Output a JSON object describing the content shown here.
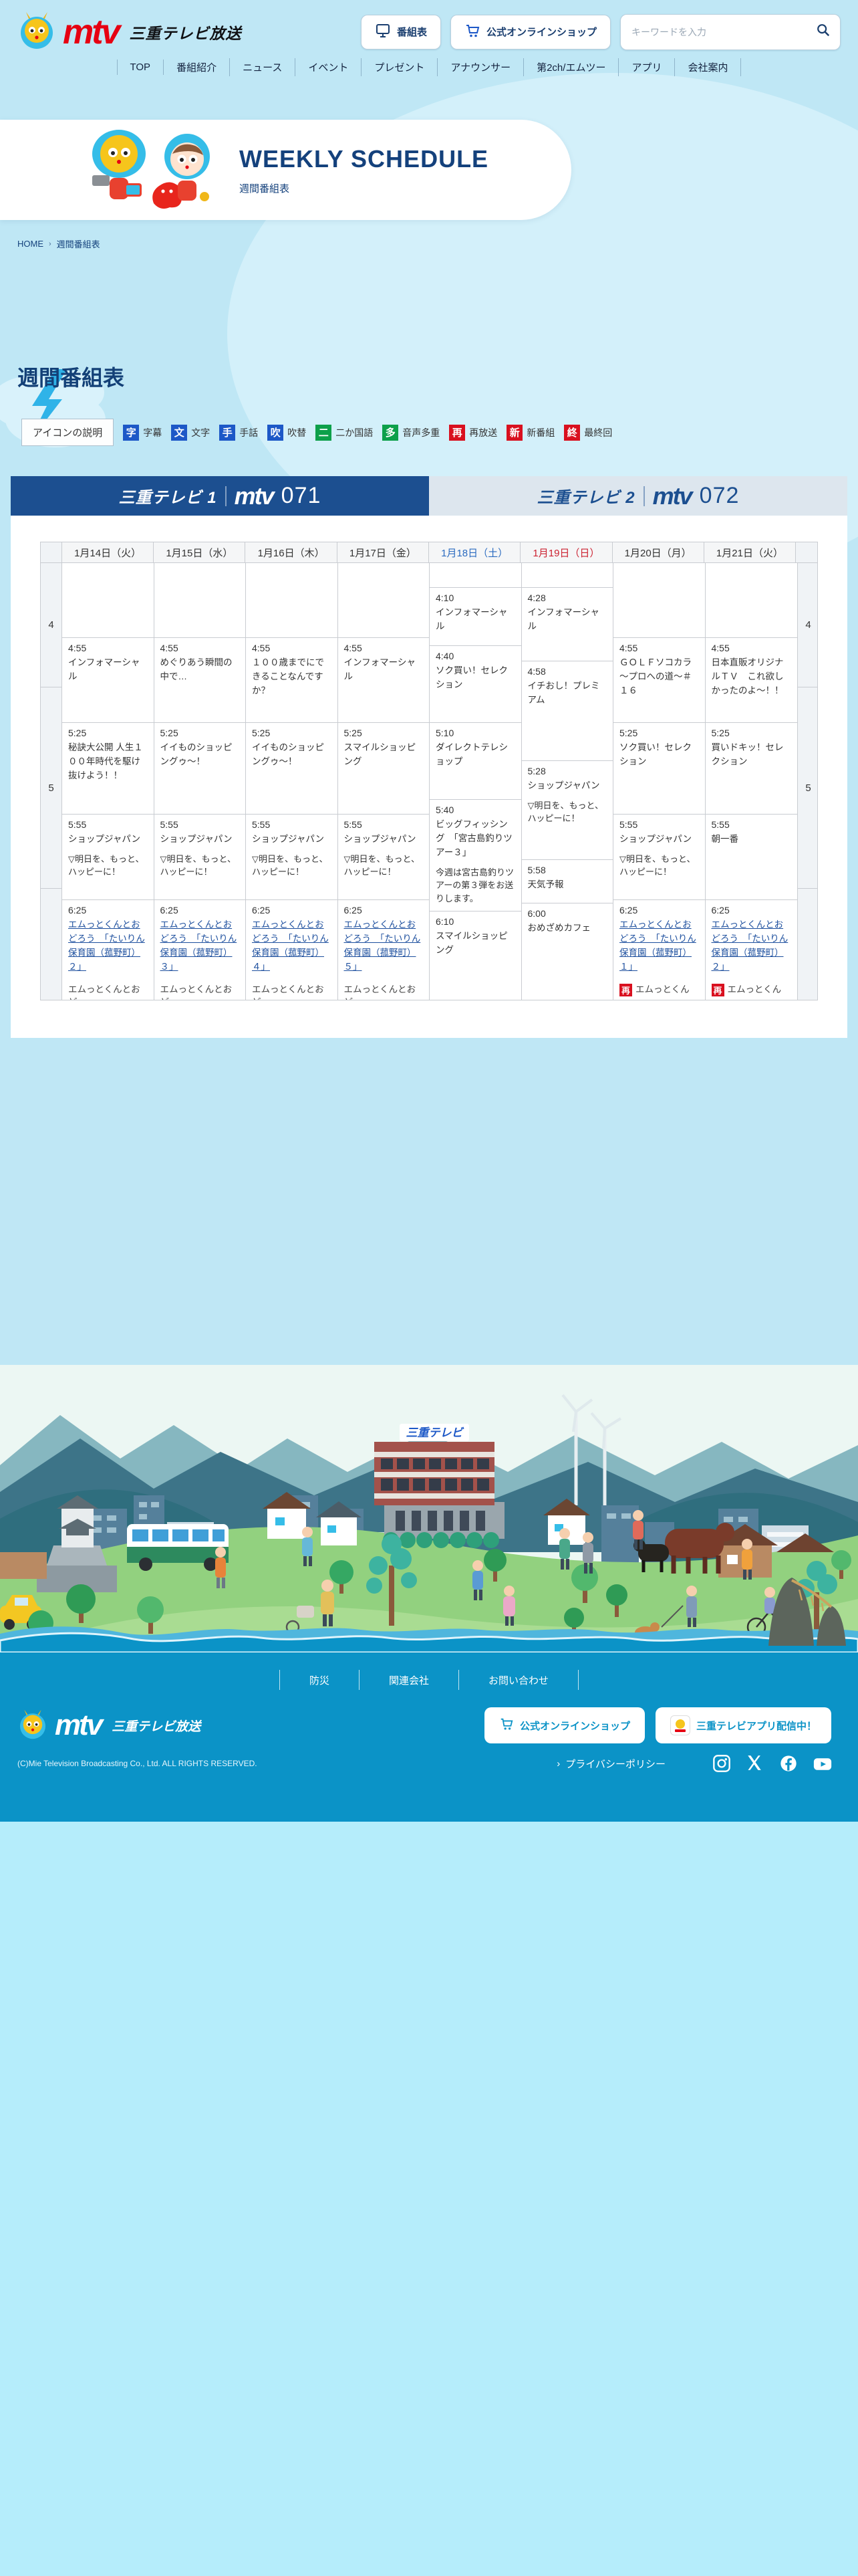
{
  "header": {
    "logo": {
      "brand": "mtv",
      "company": "三重テレビ放送"
    },
    "buttons": {
      "schedule": "番組表",
      "shop": "公式オンラインショップ"
    },
    "search": {
      "placeholder": "キーワードを入力"
    },
    "nav": [
      "TOP",
      "番組紹介",
      "ニュース",
      "イベント",
      "プレゼント",
      "アナウンサー",
      "第2ch/エムツー",
      "アプリ",
      "会社案内"
    ]
  },
  "banner": {
    "title": "WEEKLY SCHEDULE",
    "subtitle": "週間番組表"
  },
  "breadcrumb": {
    "home": "HOME",
    "current": "週間番組表"
  },
  "page": {
    "heading": "週間番組表"
  },
  "legend": {
    "label": "アイコンの説明",
    "items": [
      {
        "glyph": "字",
        "label": "字幕",
        "color": "#1d58c7"
      },
      {
        "glyph": "文",
        "label": "文字",
        "color": "#1d58c7"
      },
      {
        "glyph": "手",
        "label": "手話",
        "color": "#1d58c7"
      },
      {
        "glyph": "吹",
        "label": "吹替",
        "color": "#1d58c7"
      },
      {
        "glyph": "二",
        "label": "二か国語",
        "color": "#0da04a"
      },
      {
        "glyph": "多",
        "label": "音声多重",
        "color": "#0da04a"
      },
      {
        "glyph": "再",
        "label": "再放送",
        "color": "#d9101f"
      },
      {
        "glyph": "新",
        "label": "新番組",
        "color": "#d9101f"
      },
      {
        "glyph": "終",
        "label": "最終回",
        "color": "#d9101f"
      }
    ]
  },
  "tabs": [
    {
      "name": "三重テレビ 1",
      "brand": "mtv",
      "number": "071",
      "active": true
    },
    {
      "name": "三重テレビ 2",
      "brand": "mtv",
      "number": "072",
      "active": false
    }
  ],
  "schedule": {
    "dates": [
      {
        "label": "1月14日（火）",
        "type": "weekday"
      },
      {
        "label": "1月15日（水）",
        "type": "weekday"
      },
      {
        "label": "1月16日（木）",
        "type": "weekday"
      },
      {
        "label": "1月17日（金）",
        "type": "weekday"
      },
      {
        "label": "1月18日（土）",
        "type": "saturday"
      },
      {
        "label": "1月19日（日）",
        "type": "sunday"
      },
      {
        "label": "1月20日（月）",
        "type": "weekday"
      },
      {
        "label": "1月21日（火）",
        "type": "weekday"
      }
    ],
    "hours": [
      "4",
      "5",
      ""
    ],
    "columns": [
      {
        "programs": [
          {
            "time": "4:55",
            "title": "インフォマーシャル"
          },
          {
            "time": "5:25",
            "title": "秘訣大公開 人生１００年時代を駆け抜けよう！！"
          },
          {
            "time": "5:55",
            "title": "ショップジャパン",
            "desc": "▽明日を、もっと、ハッピーに！"
          },
          {
            "time": "6:25",
            "title": "エムっとくんとおどろう　「たいりん保育園（菰野町）２」",
            "link": true,
            "next": {
              "text": "エムっとくんとおど"
            }
          }
        ]
      },
      {
        "programs": [
          {
            "time": "4:55",
            "title": "めぐりあう瞬間の中で…"
          },
          {
            "time": "5:25",
            "title": "イイものショッピングゥ～！"
          },
          {
            "time": "5:55",
            "title": "ショップジャパン",
            "desc": "▽明日を、もっと、ハッピーに！"
          },
          {
            "time": "6:25",
            "title": "エムっとくんとおどろう　「たいりん保育園（菰野町）３」",
            "link": true,
            "next": {
              "text": "エムっとくんとおど"
            }
          }
        ]
      },
      {
        "programs": [
          {
            "time": "4:55",
            "title": "１００歳までにできることなんですか？"
          },
          {
            "time": "5:25",
            "title": "イイものショッピングゥ～！"
          },
          {
            "time": "5:55",
            "title": "ショップジャパン",
            "desc": "▽明日を、もっと、ハッピーに！"
          },
          {
            "time": "6:25",
            "title": "エムっとくんとおどろう　「たいりん保育園（菰野町）４」",
            "link": true,
            "next": {
              "text": "エムっとくんとおど"
            }
          }
        ]
      },
      {
        "programs": [
          {
            "time": "4:55",
            "title": "インフォマーシャル"
          },
          {
            "time": "5:25",
            "title": "スマイルショッピング"
          },
          {
            "time": "5:55",
            "title": "ショップジャパン",
            "desc": "▽明日を、もっと、ハッピーに！"
          },
          {
            "time": "6:25",
            "title": "エムっとくんとおどろう　「たいりん保育園（菰野町）５」",
            "link": true,
            "next": {
              "text": "エムっとくんとおど"
            }
          }
        ]
      },
      {
        "programs": [
          {
            "time": "4:10",
            "title": "インフォマーシャル"
          },
          {
            "time": "4:40",
            "title": "ソク買い！セレクション"
          },
          {
            "time": "5:10",
            "title": "ダイレクトテレショップ"
          },
          {
            "time": "5:40",
            "title": "ビッグフィッシング　「宮古島釣りツアー３」",
            "desc": "今週は宮古島釣りツアーの第３弾をお送りします。"
          },
          {
            "time": "6:10",
            "title": "スマイルショッピング"
          }
        ]
      },
      {
        "programs": [
          {
            "time": "4:28",
            "title": "インフォマーシャル"
          },
          {
            "time": "4:58",
            "title": "イチおし！プレミアム"
          },
          {
            "time": "5:28",
            "title": "ショップジャパン",
            "desc": "▽明日を、もっと、ハッピーに！"
          },
          {
            "time": "5:58",
            "title": "天気予報"
          },
          {
            "time": "6:00",
            "title": "おめざめカフェ"
          }
        ]
      },
      {
        "programs": [
          {
            "time": "4:55",
            "title": "ＧＯＬＦソコカラ～プロへの道～＃１６"
          },
          {
            "time": "5:25",
            "title": "ソク買い！セレクション"
          },
          {
            "time": "5:55",
            "title": "ショップジャパン",
            "desc": "▽明日を、もっと、ハッピーに！"
          },
          {
            "time": "6:25",
            "title": "エムっとくんとおどろう　「たいりん保育園（菰野町）１」",
            "link": true,
            "next": {
              "badge": "再",
              "text": "エムっとくん"
            }
          }
        ]
      },
      {
        "programs": [
          {
            "time": "4:55",
            "title": "日本直販オリジナルＴＶ　これ欲しかったのよ～！！"
          },
          {
            "time": "5:25",
            "title": "買いドキッ！セレクション"
          },
          {
            "time": "5:55",
            "title": "朝一番"
          },
          {
            "time": "6:25",
            "title": "エムっとくんとおどろう　「たいりん保育園（菰野町）２」",
            "link": true,
            "next": {
              "badge": "再",
              "text": "エムっとくん"
            }
          }
        ]
      }
    ]
  },
  "illustration": {
    "building_sign": "三重テレビ"
  },
  "footer": {
    "links": [
      "防災",
      "関連会社",
      "お問い合わせ"
    ],
    "logo": {
      "brand": "mtv",
      "company": "三重テレビ放送"
    },
    "buttons": {
      "shop": "公式オンラインショップ",
      "app": "三重テレビアプリ配信中！"
    },
    "copyright": "(C)Mie Television Broadcasting Co., Ltd. ALL RIGHTS RESERVED.",
    "privacy": "プライバシーポリシー",
    "socials": [
      "instagram",
      "x",
      "facebook",
      "youtube"
    ]
  }
}
